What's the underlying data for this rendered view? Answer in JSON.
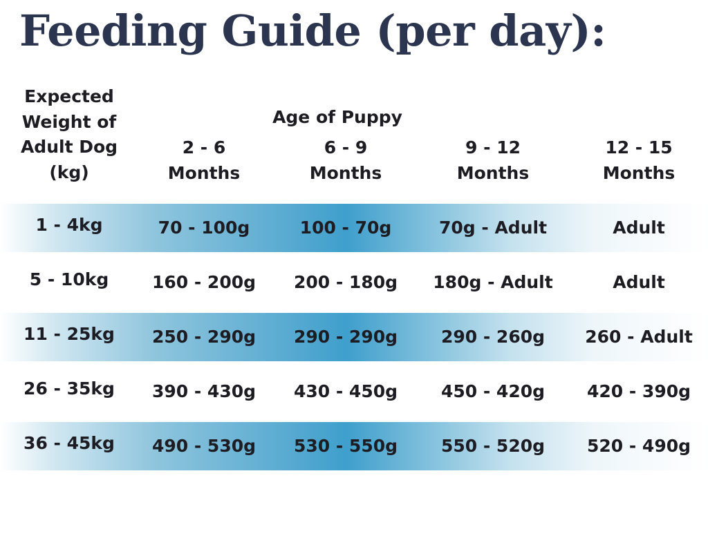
{
  "title": "Feeding Guide (per day):",
  "header": {
    "weight_label": [
      "Expected",
      "Weight of",
      "Adult Dog",
      "(kg)"
    ],
    "age_label": "Age of Puppy",
    "columns": [
      {
        "range": "2 - 6",
        "unit": "Months"
      },
      {
        "range": "6 - 9",
        "unit": "Months"
      },
      {
        "range": "9 - 12",
        "unit": "Months"
      },
      {
        "range": "12 - 15",
        "unit": "Months"
      }
    ]
  },
  "rows": [
    {
      "weight": "1 - 4kg",
      "values": [
        "70 - 100g",
        "100 - 70g",
        "70g - Adult",
        "Adult"
      ],
      "shaded": true
    },
    {
      "weight": "5 - 10kg",
      "values": [
        "160 - 200g",
        "200 - 180g",
        "180g - Adult",
        "Adult"
      ],
      "shaded": false
    },
    {
      "weight": "11 - 25kg",
      "values": [
        "250 - 290g",
        "290 - 290g",
        "290 - 260g",
        "260 - Adult"
      ],
      "shaded": true
    },
    {
      "weight": "26 - 35kg",
      "values": [
        "390 - 430g",
        "430 - 450g",
        "450 - 420g",
        "420 - 390g"
      ],
      "shaded": false
    },
    {
      "weight": "36 - 45kg",
      "values": [
        "490 - 530g",
        "530 - 550g",
        "550 - 520g",
        "520 - 490g"
      ],
      "shaded": true
    }
  ],
  "colors": {
    "title": "#2b3550",
    "band_accent": "#3f9fcc"
  }
}
